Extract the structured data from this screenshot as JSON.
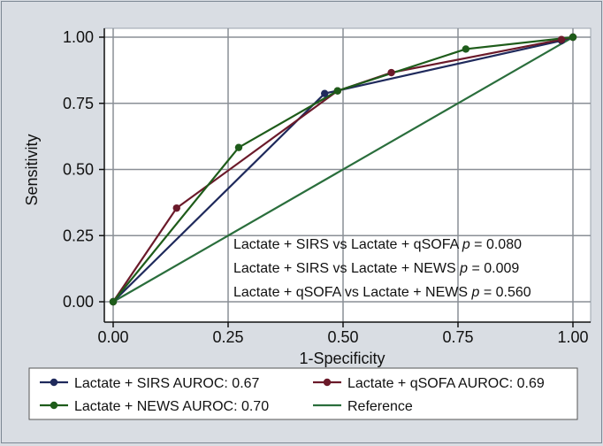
{
  "chart_data": {
    "type": "line",
    "title": "",
    "xlabel": "1-Specificity",
    "ylabel": "Sensitivity",
    "xlim": [
      0,
      1
    ],
    "ylim": [
      0,
      1
    ],
    "xticks": [
      "0.00",
      "0.25",
      "0.50",
      "0.75",
      "1.00"
    ],
    "yticks": [
      "0.00",
      "0.25",
      "0.50",
      "0.75",
      "1.00"
    ],
    "grid": true,
    "legend_position": "bottom",
    "series": [
      {
        "name": "Lactate + SIRS AUROC: 0.67",
        "color": "#1f2a5c",
        "markers": true,
        "x": [
          0.0,
          0.46,
          0.975,
          1.0
        ],
        "y": [
          0.0,
          0.787,
          0.987,
          1.0
        ]
      },
      {
        "name": "Lactate + qSOFA AUROC: 0.69",
        "color": "#6b1a2a",
        "markers": true,
        "x": [
          0.0,
          0.138,
          0.488,
          0.605,
          0.975,
          1.0
        ],
        "y": [
          0.0,
          0.354,
          0.797,
          0.866,
          0.991,
          1.0
        ]
      },
      {
        "name": "Lactate + NEWS AUROC: 0.70",
        "color": "#1e5c1a",
        "markers": true,
        "x": [
          0.0,
          0.273,
          0.488,
          0.767,
          1.0
        ],
        "y": [
          0.0,
          0.583,
          0.797,
          0.955,
          1.0
        ]
      },
      {
        "name": "Reference",
        "color": "#2a6e3c",
        "markers": false,
        "x": [
          0.0,
          1.0
        ],
        "y": [
          0.0,
          1.0
        ]
      }
    ],
    "annotations": [
      "Lactate + SIRS vs Lactate + qSOFA",
      "Lactate + SIRS vs Lactate + NEWS",
      "Lactate + qSOFA vs Lactate + NEWS"
    ],
    "annotation_p": [
      "p",
      "p",
      "p"
    ],
    "annotation_values": [
      "= 0.080",
      "= 0.009",
      "= 0.560"
    ]
  }
}
